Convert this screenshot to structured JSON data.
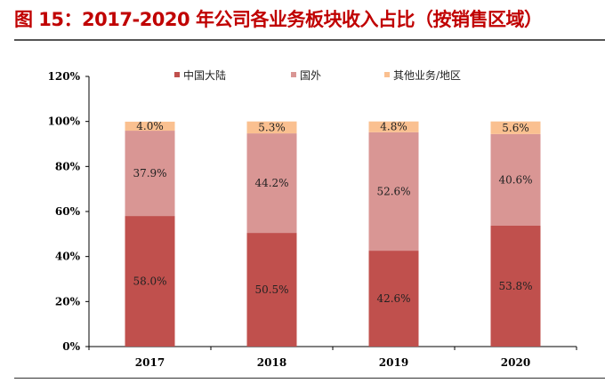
{
  "title": "图 15：2017-2020 年公司各业务板块收入占比（按销售区域）",
  "chart_data": {
    "type": "bar",
    "stacked": true,
    "categories": [
      "2017",
      "2018",
      "2019",
      "2020"
    ],
    "series": [
      {
        "name": "中国大陆",
        "values": [
          58.0,
          50.5,
          42.6,
          53.8
        ],
        "labels": [
          "58.0%",
          "50.5%",
          "42.6%",
          "53.8%"
        ],
        "color": "#C0504D"
      },
      {
        "name": "国外",
        "values": [
          37.9,
          44.2,
          52.6,
          40.6
        ],
        "labels": [
          "37.9%",
          "44.2%",
          "52.6%",
          "40.6%"
        ],
        "color": "#D99694"
      },
      {
        "name": "其他业务/地区",
        "values": [
          4.0,
          5.3,
          4.8,
          5.6
        ],
        "labels": [
          "4.0%",
          "5.3%",
          "4.8%",
          "5.6%"
        ],
        "color": "#FAC090"
      }
    ],
    "ylim": [
      0,
      120
    ],
    "yticks": [
      "0%",
      "20%",
      "40%",
      "60%",
      "80%",
      "100%",
      "120%"
    ],
    "legend": "top",
    "grid": false
  }
}
